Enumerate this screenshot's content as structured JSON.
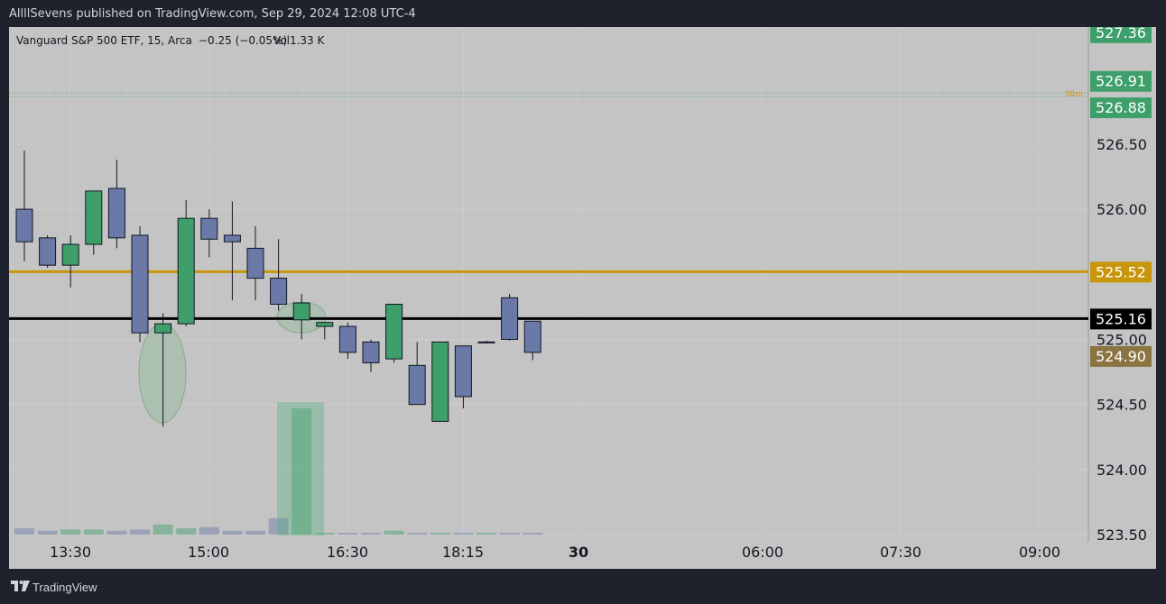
{
  "header": {
    "published": "AllllSevens published on TradingView.com, Sep 29, 2024 12:08 UTC-4"
  },
  "legend": {
    "symbol": "Vanguard S&P 500 ETF, 15, Arca",
    "change": "−0.25 (−0.05%)",
    "volume": "Vol1.33 K"
  },
  "footer": {
    "brand": "TradingView"
  },
  "colors": {
    "up": "#3f9f6b",
    "down": "#6a79a8",
    "bg": "#c4c4c4",
    "gold": "#c8960a",
    "black": "#000000"
  },
  "chart_data": {
    "type": "candlestick",
    "ylim": [
      523.5,
      527.4
    ],
    "y_ticks": [
      "526.50",
      "526.00",
      "525.00",
      "524.50",
      "524.00",
      "523.50"
    ],
    "x_ticks": [
      {
        "label": "13:30",
        "bold": false
      },
      {
        "label": "15:00",
        "bold": false
      },
      {
        "label": "16:30",
        "bold": false
      },
      {
        "label": "18:15",
        "bold": false
      },
      {
        "label": "30",
        "bold": true
      },
      {
        "label": "06:00",
        "bold": false
      },
      {
        "label": "07:30",
        "bold": false
      },
      {
        "label": "09:00",
        "bold": false
      }
    ],
    "candles": [
      {
        "o": 526.0,
        "h": 526.45,
        "l": 525.6,
        "c": 525.75
      },
      {
        "o": 525.78,
        "h": 525.8,
        "l": 525.55,
        "c": 525.57
      },
      {
        "o": 525.57,
        "h": 525.8,
        "l": 525.4,
        "c": 525.73
      },
      {
        "o": 525.73,
        "h": 526.14,
        "l": 525.65,
        "c": 526.14
      },
      {
        "o": 526.16,
        "h": 526.38,
        "l": 525.7,
        "c": 525.78
      },
      {
        "o": 525.8,
        "h": 525.87,
        "l": 524.98,
        "c": 525.05
      },
      {
        "o": 525.05,
        "h": 525.2,
        "l": 524.33,
        "c": 525.12
      },
      {
        "o": 525.12,
        "h": 526.07,
        "l": 525.1,
        "c": 525.93
      },
      {
        "o": 525.93,
        "h": 526.0,
        "l": 525.63,
        "c": 525.77
      },
      {
        "o": 525.8,
        "h": 526.06,
        "l": 525.3,
        "c": 525.75
      },
      {
        "o": 525.7,
        "h": 525.87,
        "l": 525.3,
        "c": 525.47
      },
      {
        "o": 525.47,
        "h": 525.77,
        "l": 525.22,
        "c": 525.27
      },
      {
        "o": 525.15,
        "h": 525.35,
        "l": 525.0,
        "c": 525.28
      },
      {
        "o": 525.1,
        "h": 525.13,
        "l": 525.0,
        "c": 525.13
      },
      {
        "o": 525.1,
        "h": 525.13,
        "l": 524.85,
        "c": 524.9
      },
      {
        "o": 524.98,
        "h": 525.0,
        "l": 524.75,
        "c": 524.82
      },
      {
        "o": 524.85,
        "h": 525.27,
        "l": 524.82,
        "c": 525.27
      },
      {
        "o": 524.8,
        "h": 524.98,
        "l": 524.5,
        "c": 524.5
      },
      {
        "o": 524.37,
        "h": 524.98,
        "l": 524.37,
        "c": 524.98
      },
      {
        "o": 524.95,
        "h": 524.95,
        "l": 524.47,
        "c": 524.56
      },
      {
        "o": 524.98,
        "h": 524.99,
        "l": 524.97,
        "c": 524.98
      },
      {
        "o": 525.32,
        "h": 525.35,
        "l": 524.99,
        "c": 525.0
      },
      {
        "o": 525.14,
        "h": 525.14,
        "l": 524.84,
        "c": 524.9
      }
    ],
    "volumes": [
      0.5,
      0.3,
      0.4,
      0.4,
      0.3,
      0.4,
      0.8,
      0.5,
      0.6,
      0.3,
      0.3,
      1.3,
      10.0,
      0.1,
      0.1,
      0.1,
      0.3,
      0.1,
      0.1,
      0.1,
      0.1,
      0.1,
      0.1
    ],
    "levels": [
      {
        "price": 525.52,
        "label": "525.52",
        "color": "#c8960a",
        "line": "solid"
      },
      {
        "price": 525.16,
        "label": "525.16",
        "color": "#000000",
        "line": "solid"
      }
    ],
    "price_tags": [
      {
        "price": 527.36,
        "label": "527.36",
        "color": "#3f9f6b"
      },
      {
        "price": 526.91,
        "label": "526.91",
        "color": "#3f9f6b"
      },
      {
        "price": 526.88,
        "label": "526.88",
        "color": "#3f9f6b"
      },
      {
        "price": 524.9,
        "label": "524.90",
        "color": "#8a7440"
      }
    ],
    "dotted_level": {
      "price": 526.88,
      "tag": "30m"
    }
  }
}
